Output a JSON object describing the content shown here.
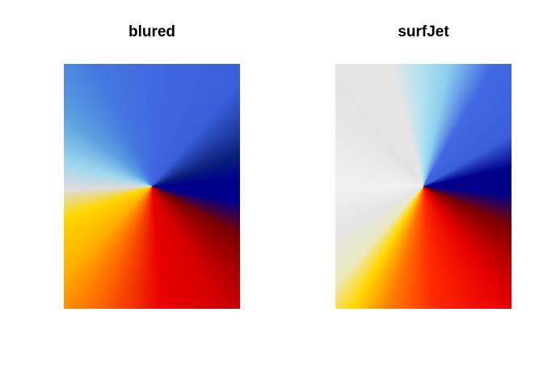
{
  "panels": [
    {
      "title": "blured",
      "colormap": "blured",
      "stops": [
        {
          "angle": 0,
          "color": "#4169e1"
        },
        {
          "angle": 40,
          "color": "#3a5fd8"
        },
        {
          "angle": 70,
          "color": "#0a1f7a"
        },
        {
          "angle": 86,
          "color": "#00008b"
        },
        {
          "angle": 100,
          "color": "#00008b"
        },
        {
          "angle": 120,
          "color": "#7a0000"
        },
        {
          "angle": 150,
          "color": "#d40000"
        },
        {
          "angle": 175,
          "color": "#e80000"
        },
        {
          "angle": 205,
          "color": "#ff6a00"
        },
        {
          "angle": 225,
          "color": "#ffb000"
        },
        {
          "angle": 250,
          "color": "#ffd700"
        },
        {
          "angle": 268,
          "color": "#dcdcdc"
        },
        {
          "angle": 285,
          "color": "#9fd8ee"
        },
        {
          "angle": 310,
          "color": "#5b9fe0"
        },
        {
          "angle": 335,
          "color": "#4478e0"
        },
        {
          "angle": 360,
          "color": "#4169e1"
        }
      ]
    },
    {
      "title": "surfJet",
      "colormap": "surfJet",
      "stops": [
        {
          "angle": 0,
          "color": "#aee0f2"
        },
        {
          "angle": 12,
          "color": "#8ccfee"
        },
        {
          "angle": 30,
          "color": "#4169e1"
        },
        {
          "angle": 60,
          "color": "#3a5fd8"
        },
        {
          "angle": 78,
          "color": "#00008b"
        },
        {
          "angle": 95,
          "color": "#00008b"
        },
        {
          "angle": 115,
          "color": "#7a0000"
        },
        {
          "angle": 145,
          "color": "#e60000"
        },
        {
          "angle": 175,
          "color": "#ff2a00"
        },
        {
          "angle": 195,
          "color": "#ff7a00"
        },
        {
          "angle": 210,
          "color": "#ffd700"
        },
        {
          "angle": 222,
          "color": "#ece9c0"
        },
        {
          "angle": 240,
          "color": "#e4e4e4"
        },
        {
          "angle": 270,
          "color": "#f1f1f1"
        },
        {
          "angle": 320,
          "color": "#e3e3e3"
        },
        {
          "angle": 345,
          "color": "#e6e6e6"
        },
        {
          "angle": 360,
          "color": "#aee0f2"
        }
      ]
    }
  ]
}
